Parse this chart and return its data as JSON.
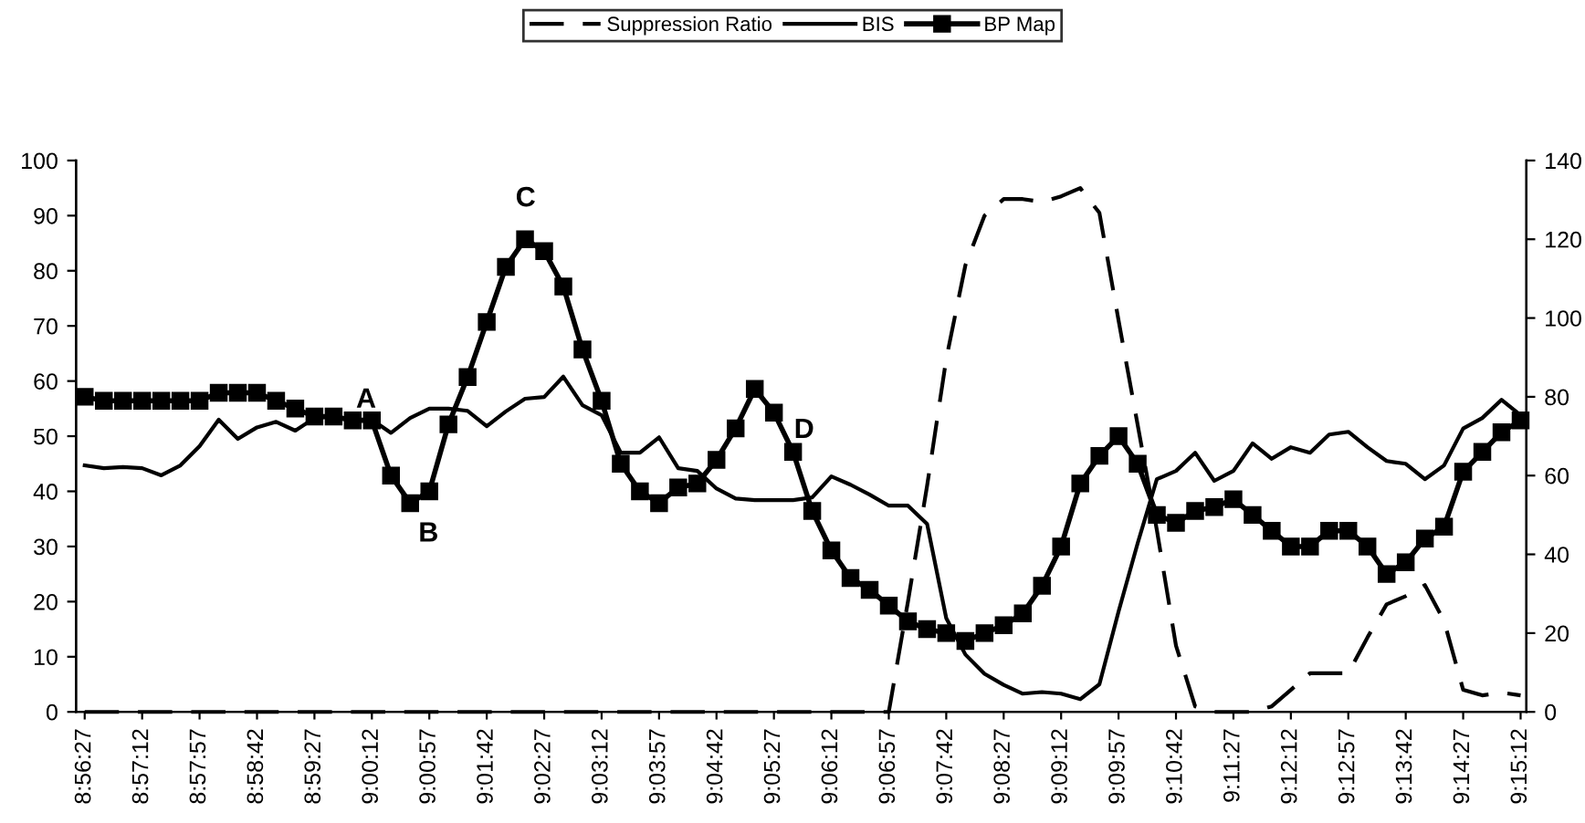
{
  "chart_data": {
    "type": "line",
    "categories": [
      "8:56:27",
      null,
      null,
      "8:57:12",
      null,
      null,
      "8:57:57",
      null,
      null,
      "8:58:42",
      null,
      null,
      "8:59:27",
      null,
      null,
      "9:00:12",
      null,
      null,
      "9:00:57",
      null,
      null,
      "9:01:42",
      null,
      null,
      "9:02:27",
      null,
      null,
      "9:03:12",
      null,
      null,
      "9:03:57",
      null,
      null,
      "9:04:42",
      null,
      null,
      "9:05:27",
      null,
      null,
      "9:06:12",
      null,
      null,
      "9:06:57",
      null,
      null,
      "9:07:42",
      null,
      null,
      "9:08:27",
      null,
      null,
      "9:09:12",
      null,
      null,
      "9:09:57",
      null,
      null,
      "9:10:42",
      null,
      null,
      "9:11:27",
      null,
      null,
      "9:12:12",
      null,
      null,
      "9:12:57",
      null,
      null,
      "9:13:42",
      null,
      null,
      "9:14:27",
      null,
      null,
      "9:15:12"
    ],
    "series": [
      {
        "name": "Suppression Ratio",
        "color": "#000000",
        "line_style": "dashed",
        "marker": "none",
        "values": [
          0,
          0,
          0,
          0,
          0,
          0,
          0,
          0,
          0,
          0,
          0,
          0,
          0,
          0,
          0,
          0,
          0,
          0,
          0,
          0,
          0,
          0,
          0,
          0,
          0,
          0,
          0,
          0,
          0,
          0,
          0,
          0,
          0,
          0,
          0,
          0,
          0,
          0,
          0,
          0,
          0,
          0,
          0,
          20,
          41,
          64,
          81,
          90,
          93,
          93,
          92.5,
          93.5,
          95,
          90.5,
          71,
          52,
          33,
          12,
          1,
          0,
          0,
          0,
          1,
          4,
          7,
          7,
          7,
          13.5,
          19.5,
          21,
          23,
          16.5,
          4,
          3,
          3.5,
          3
        ]
      },
      {
        "name": "BIS",
        "color": "#000000",
        "line_style": "solid",
        "marker": "none",
        "values": [
          44.7,
          44.2,
          44.4,
          44.2,
          42.9,
          44.7,
          48.2,
          53,
          49.5,
          51.6,
          52.6,
          51,
          53.3,
          53.6,
          53,
          53,
          50.6,
          53.3,
          55,
          55,
          54.6,
          51.8,
          54.5,
          56.8,
          57.1,
          60.8,
          55.6,
          53.8,
          47,
          47,
          49.8,
          44.2,
          43.7,
          40.5,
          38.7,
          38.4,
          38.4,
          38.4,
          38.9,
          42.7,
          41.2,
          39.4,
          37.4,
          37.4,
          34.1,
          17,
          10.4,
          6.9,
          4.9,
          3.3,
          3.6,
          3.3,
          2.3,
          5,
          18.2,
          30.6,
          42.2,
          43.7,
          47,
          41.9,
          43.7,
          48.7,
          45.9,
          48,
          47,
          50.3,
          50.8,
          48,
          45.5,
          45,
          42.2,
          44.7,
          51.4,
          53.3,
          56.6,
          53.8
        ]
      },
      {
        "name": "BP Map",
        "color": "#000000",
        "line_style": "solid",
        "marker": "square",
        "axis": "y2",
        "values": [
          80,
          79,
          79,
          79,
          79,
          79,
          79,
          81,
          81,
          81,
          79,
          77,
          75,
          75,
          74,
          74,
          60,
          53,
          56,
          73,
          85,
          99,
          113,
          120,
          117,
          108,
          92,
          79,
          63,
          56,
          53,
          57,
          58,
          64,
          72,
          82,
          76,
          66,
          51,
          41,
          34,
          31,
          27,
          23,
          21,
          20,
          18,
          20,
          22,
          25,
          32,
          42,
          58,
          65,
          70,
          63,
          50,
          48,
          51,
          52,
          54,
          50,
          46,
          42,
          42,
          46,
          46,
          42,
          35,
          38,
          44,
          47,
          61,
          66,
          71,
          74
        ]
      }
    ],
    "ylim": [
      0,
      100
    ],
    "yticks": [
      0,
      10,
      20,
      30,
      40,
      50,
      60,
      70,
      80,
      90,
      100
    ],
    "y2lim": [
      0,
      140
    ],
    "y2ticks": [
      0,
      20,
      40,
      60,
      80,
      100,
      120,
      140
    ],
    "annotations": [
      "A",
      "B",
      "C",
      "D"
    ],
    "grid": false,
    "legend": "top"
  }
}
